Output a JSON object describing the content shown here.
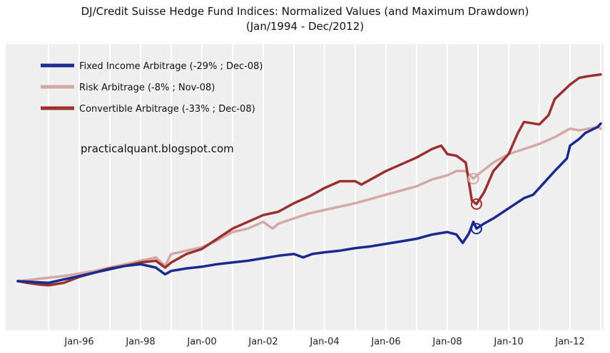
{
  "chart_data": {
    "type": "line",
    "title": "DJ/Credit Suisse Hedge Fund Indices: Normalized Values (and Maximum Drawdown)",
    "subtitle": "(Jan/1994 - Dec/2012)",
    "xlabel": "",
    "ylabel": "",
    "x_ticks": [
      "Jan-96",
      "Jan-98",
      "Jan-00",
      "Jan-02",
      "Jan-04",
      "Jan-06",
      "Jan-08",
      "Jan-10",
      "Jan-12"
    ],
    "x_range": [
      1994.0,
      2013.0
    ],
    "y_axis_labels": false,
    "grid": true,
    "legend_position": "top-left",
    "annotation": "practicalquant.blogspot.com",
    "series": [
      {
        "name": "Fixed Income Arbitrage (-29% ; Dec-08)",
        "color": "#1a2a8e",
        "drawdown_marker": {
          "x": 2008.95,
          "y": 0.62
        },
        "x": [
          1994.0,
          1994.5,
          1995.0,
          1995.5,
          1996.0,
          1996.5,
          1997.0,
          1997.5,
          1998.0,
          1998.5,
          1998.8,
          1999.0,
          1999.5,
          2000.0,
          2000.5,
          2001.0,
          2001.5,
          2002.0,
          2002.5,
          2003.0,
          2003.3,
          2003.6,
          2004.0,
          2004.5,
          2005.0,
          2005.5,
          2006.0,
          2006.5,
          2007.0,
          2007.5,
          2008.0,
          2008.3,
          2008.5,
          2008.7,
          2008.85,
          2008.95,
          2009.2,
          2009.5,
          2010.0,
          2010.5,
          2010.8,
          2011.0,
          2011.5,
          2011.9,
          2012.0,
          2012.3,
          2012.5,
          2012.9,
          2013.0
        ],
        "values": [
          0.0,
          -0.01,
          -0.02,
          0.02,
          0.06,
          0.1,
          0.14,
          0.18,
          0.2,
          0.16,
          0.08,
          0.12,
          0.15,
          0.17,
          0.2,
          0.22,
          0.24,
          0.27,
          0.3,
          0.32,
          0.28,
          0.32,
          0.34,
          0.36,
          0.39,
          0.41,
          0.44,
          0.47,
          0.5,
          0.55,
          0.58,
          0.55,
          0.45,
          0.56,
          0.7,
          0.62,
          0.68,
          0.74,
          0.86,
          0.98,
          1.02,
          1.1,
          1.3,
          1.45,
          1.6,
          1.68,
          1.75,
          1.82,
          1.86
        ]
      },
      {
        "name": "Risk Arbitrage (-8% ; Nov-08)",
        "color": "#d4a8a4",
        "drawdown_marker": {
          "x": 2008.85,
          "y": 1.21
        },
        "x": [
          1994.0,
          1994.5,
          1995.0,
          1995.5,
          1996.0,
          1996.5,
          1997.0,
          1997.5,
          1998.0,
          1998.5,
          1998.8,
          1999.0,
          1999.5,
          2000.0,
          2000.5,
          2001.0,
          2001.5,
          2002.0,
          2002.3,
          2002.5,
          2003.0,
          2003.5,
          2004.0,
          2004.5,
          2005.0,
          2005.5,
          2006.0,
          2006.5,
          2007.0,
          2007.5,
          2008.0,
          2008.3,
          2008.6,
          2008.85,
          2009.0,
          2009.5,
          2010.0,
          2010.5,
          2011.0,
          2011.5,
          2012.0,
          2012.3,
          2012.6,
          2012.9,
          2013.0
        ],
        "values": [
          0.0,
          0.02,
          0.04,
          0.06,
          0.09,
          0.12,
          0.16,
          0.2,
          0.24,
          0.28,
          0.18,
          0.32,
          0.36,
          0.4,
          0.48,
          0.58,
          0.62,
          0.7,
          0.62,
          0.68,
          0.74,
          0.8,
          0.84,
          0.88,
          0.92,
          0.97,
          1.02,
          1.07,
          1.12,
          1.2,
          1.25,
          1.3,
          1.3,
          1.21,
          1.26,
          1.4,
          1.5,
          1.56,
          1.62,
          1.7,
          1.8,
          1.78,
          1.8,
          1.82,
          1.8
        ]
      },
      {
        "name": "Convertible Arbitrage (-33% ; Dec-08)",
        "color": "#9c2f2f",
        "drawdown_marker": {
          "x": 2008.95,
          "y": 0.91
        },
        "x": [
          1994.0,
          1994.3,
          1994.7,
          1995.0,
          1995.5,
          1996.0,
          1996.5,
          1997.0,
          1997.5,
          1998.0,
          1998.5,
          1998.8,
          1999.0,
          1999.5,
          2000.0,
          2000.5,
          2001.0,
          2001.5,
          2002.0,
          2002.5,
          2003.0,
          2003.5,
          2004.0,
          2004.5,
          2005.0,
          2005.2,
          2005.5,
          2006.0,
          2006.5,
          2007.0,
          2007.5,
          2007.8,
          2008.0,
          2008.3,
          2008.6,
          2008.8,
          2008.95,
          2009.2,
          2009.5,
          2010.0,
          2010.3,
          2010.5,
          2011.0,
          2011.3,
          2011.5,
          2012.0,
          2012.3,
          2012.6,
          2013.0
        ],
        "values": [
          0.0,
          -0.02,
          -0.04,
          -0.05,
          -0.02,
          0.05,
          0.1,
          0.15,
          0.18,
          0.22,
          0.24,
          0.16,
          0.22,
          0.32,
          0.38,
          0.5,
          0.62,
          0.7,
          0.78,
          0.82,
          0.92,
          1.0,
          1.1,
          1.18,
          1.18,
          1.14,
          1.2,
          1.3,
          1.38,
          1.46,
          1.56,
          1.6,
          1.5,
          1.48,
          1.4,
          0.95,
          0.91,
          1.05,
          1.3,
          1.5,
          1.75,
          1.88,
          1.85,
          1.96,
          2.15,
          2.32,
          2.4,
          2.42,
          2.44
        ]
      }
    ]
  }
}
